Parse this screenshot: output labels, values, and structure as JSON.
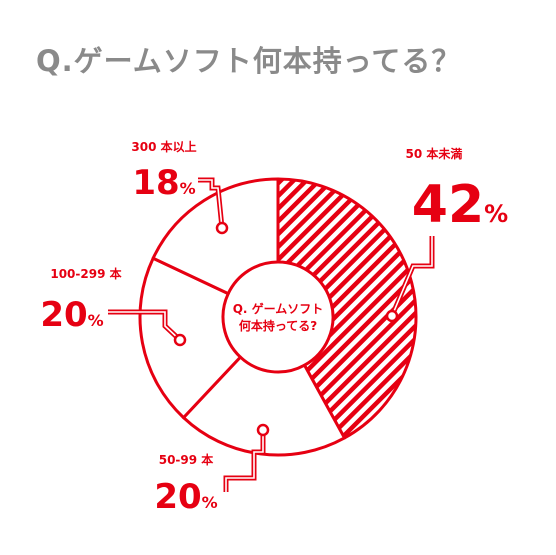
{
  "title": "Q.ゲームソフト何本持ってる？",
  "chart_data": {
    "type": "pie",
    "title": "Q.ゲームソフト何本持ってる？",
    "center_label": [
      "Q. ゲームソフト",
      "何本持ってる?"
    ],
    "unit": "%",
    "categories": [
      "50 本未満",
      "50-99 本",
      "100-299 本",
      "300 本以上"
    ],
    "values": [
      42,
      20,
      20,
      18
    ],
    "highlight": "50 本未満",
    "colors": {
      "accent": "#e60012",
      "title": "#8a8a8a",
      "background": "#ffffff"
    }
  }
}
